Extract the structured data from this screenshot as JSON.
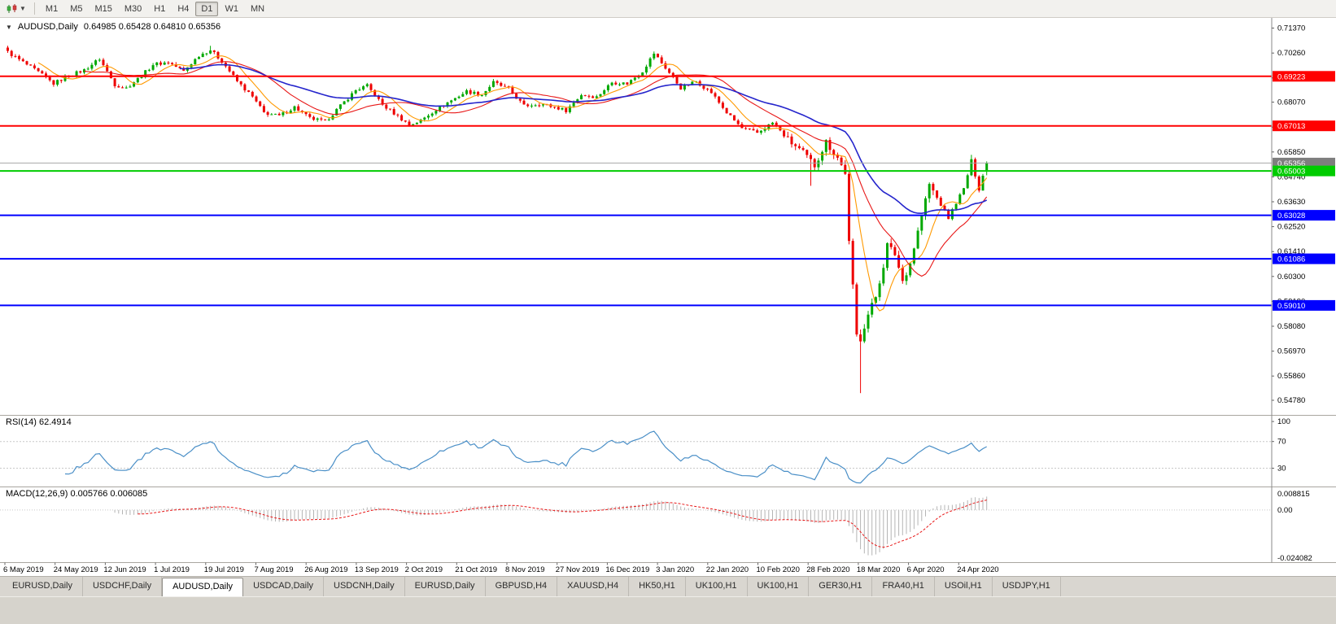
{
  "toolbar": {
    "timeframes": [
      "M1",
      "M5",
      "M15",
      "M30",
      "H1",
      "H4",
      "D1",
      "W1",
      "MN"
    ],
    "active_timeframe": "D1",
    "chart_type_icon": "candlestick-chart-icon",
    "dropdown_caret": "▼"
  },
  "chart_header": {
    "collapse_icon": "▼",
    "symbol_label": "AUDUSD,Daily",
    "ohlc_label": "0.64985 0.65428 0.64810 0.65356"
  },
  "indicator_labels": {
    "rsi": "RSI(14) 62.4914",
    "macd": "MACD(12,26,9) 0.005766 0.006085"
  },
  "tabs": {
    "items": [
      "EURUSD,Daily",
      "USDCHF,Daily",
      "AUDUSD,Daily",
      "USDCAD,Daily",
      "USDCNH,Daily",
      "EURUSD,Daily",
      "GBPUSD,H4",
      "XAUUSD,H4",
      "HK50,H1",
      "UK100,H1",
      "UK100,H1",
      "GER30,H1",
      "FRA40,H1",
      "USOil,H1",
      "USDJPY,H1"
    ],
    "active_index": 2
  },
  "chart_data": {
    "type": "candlestick",
    "symbol": "AUDUSD",
    "timeframe": "Daily",
    "current_bar": {
      "open": 0.64985,
      "high": 0.65428,
      "low": 0.6481,
      "close": 0.65356
    },
    "current_price": 0.65356,
    "price_axis_ticks": [
      "0.71370",
      "0.70260",
      "0.69150",
      "0.68070",
      "0.66960",
      "0.65850",
      "0.64740",
      "0.63630",
      "0.62520",
      "0.61410",
      "0.60300",
      "0.59190",
      "0.58080",
      "0.56970",
      "0.55860",
      "0.54780"
    ],
    "horizontal_levels": [
      {
        "label": "0.69223",
        "value": 0.69223,
        "color": "#ff0000",
        "width": 2
      },
      {
        "label": "0.67013",
        "value": 0.67013,
        "color": "#ff0000",
        "width": 2
      },
      {
        "label": "0.65356",
        "value": 0.65356,
        "color": "#a8a8a8",
        "width": 1,
        "badge_color": "#7e7e7e",
        "role": "current-price"
      },
      {
        "label": "0.65003",
        "value": 0.65003,
        "color": "#00cc00",
        "width": 2
      },
      {
        "label": "0.63028",
        "value": 0.63028,
        "color": "#0000ff",
        "width": 2
      },
      {
        "label": "0.61086",
        "value": 0.61086,
        "color": "#0000ff",
        "width": 2
      },
      {
        "label": "0.59010",
        "value": 0.5901,
        "color": "#0000ff",
        "width": 2
      }
    ],
    "x_axis_labels": [
      "6 May 2019",
      "24 May 2019",
      "12 Jun 2019",
      "1 Jul 2019",
      "19 Jul 2019",
      "7 Aug 2019",
      "26 Aug 2019",
      "13 Sep 2019",
      "2 Oct 2019",
      "21 Oct 2019",
      "8 Nov 2019",
      "27 Nov 2019",
      "16 Dec 2019",
      "3 Jan 2020",
      "22 Jan 2020",
      "10 Feb 2020",
      "28 Feb 2020",
      "18 Mar 2020",
      "6 Apr 2020",
      "24 Apr 2020"
    ],
    "candle_count": 257,
    "price_range_visible": [
      0.542,
      0.7168
    ],
    "close_anchors": [
      [
        0,
        0.703
      ],
      [
        4,
        0.6985
      ],
      [
        8,
        0.694
      ],
      [
        12,
        0.689
      ],
      [
        16,
        0.6925
      ],
      [
        20,
        0.695
      ],
      [
        24,
        0.7
      ],
      [
        28,
        0.6885
      ],
      [
        31,
        0.687
      ],
      [
        35,
        0.6925
      ],
      [
        38,
        0.6975
      ],
      [
        42,
        0.6985
      ],
      [
        46,
        0.6945
      ],
      [
        50,
        0.7015
      ],
      [
        53,
        0.704
      ],
      [
        56,
        0.699
      ],
      [
        60,
        0.69
      ],
      [
        64,
        0.683
      ],
      [
        67,
        0.676
      ],
      [
        71,
        0.6745
      ],
      [
        75,
        0.6785
      ],
      [
        79,
        0.6735
      ],
      [
        83,
        0.672
      ],
      [
        87,
        0.679
      ],
      [
        91,
        0.686
      ],
      [
        94,
        0.688
      ],
      [
        98,
        0.6795
      ],
      [
        102,
        0.6745
      ],
      [
        105,
        0.6705
      ],
      [
        108,
        0.6725
      ],
      [
        112,
        0.6775
      ],
      [
        116,
        0.6815
      ],
      [
        120,
        0.6855
      ],
      [
        124,
        0.684
      ],
      [
        127,
        0.6895
      ],
      [
        131,
        0.6865
      ],
      [
        135,
        0.679
      ],
      [
        139,
        0.68
      ],
      [
        143,
        0.6785
      ],
      [
        146,
        0.677
      ],
      [
        150,
        0.684
      ],
      [
        154,
        0.683
      ],
      [
        158,
        0.6895
      ],
      [
        162,
        0.689
      ],
      [
        166,
        0.6945
      ],
      [
        169,
        0.7025
      ],
      [
        172,
        0.696
      ],
      [
        176,
        0.687
      ],
      [
        180,
        0.69
      ],
      [
        184,
        0.685
      ],
      [
        188,
        0.676
      ],
      [
        192,
        0.669
      ],
      [
        196,
        0.667
      ],
      [
        200,
        0.6715
      ],
      [
        204,
        0.664
      ],
      [
        208,
        0.658
      ],
      [
        211,
        0.6525
      ],
      [
        214,
        0.663
      ],
      [
        217,
        0.656
      ],
      [
        219,
        0.649
      ],
      [
        220,
        0.6185
      ],
      [
        221,
        0.599
      ],
      [
        222,
        0.577
      ],
      [
        223,
        0.5745
      ],
      [
        225,
        0.586
      ],
      [
        227,
        0.594
      ],
      [
        229,
        0.608
      ],
      [
        230,
        0.617
      ],
      [
        232,
        0.613
      ],
      [
        234,
        0.601
      ],
      [
        236,
        0.609
      ],
      [
        238,
        0.623
      ],
      [
        241,
        0.644
      ],
      [
        243,
        0.638
      ],
      [
        246,
        0.629
      ],
      [
        248,
        0.636
      ],
      [
        250,
        0.642
      ],
      [
        252,
        0.6545
      ],
      [
        254,
        0.642
      ],
      [
        255,
        0.648
      ],
      [
        256,
        0.65356
      ]
    ],
    "forced_lows": {
      "210": 0.6434,
      "223": 0.551
    },
    "forced_highs": {
      "53": 0.7058,
      "252": 0.6572
    },
    "moving_averages": [
      {
        "name": "fast-ma",
        "period": 8,
        "method": "sma",
        "color": "#ff9900",
        "width": 1.1
      },
      {
        "name": "medium-ma",
        "period": 20,
        "method": "sma",
        "color": "#e81717",
        "width": 1.1
      },
      {
        "name": "slow-ma",
        "period": 45,
        "method": "ema",
        "color": "#2525cc",
        "width": 1.6
      }
    ],
    "rsi": {
      "period": 14,
      "value": 62.4914,
      "levels": [
        70,
        30
      ],
      "axis_labels": [
        "100",
        "70",
        "30"
      ],
      "line_color": "#4a8fc7"
    },
    "macd": {
      "fast": 12,
      "slow": 26,
      "signal": 9,
      "values": [
        0.005766,
        0.006085
      ],
      "axis_labels": [
        "0.008815",
        "0.00",
        "-0.024082"
      ],
      "histogram_color": "#b4b4b4",
      "signal_color": "#e81717"
    },
    "colors": {
      "up": "#00a800",
      "down": "#ee0000",
      "background": "#ffffff"
    }
  }
}
